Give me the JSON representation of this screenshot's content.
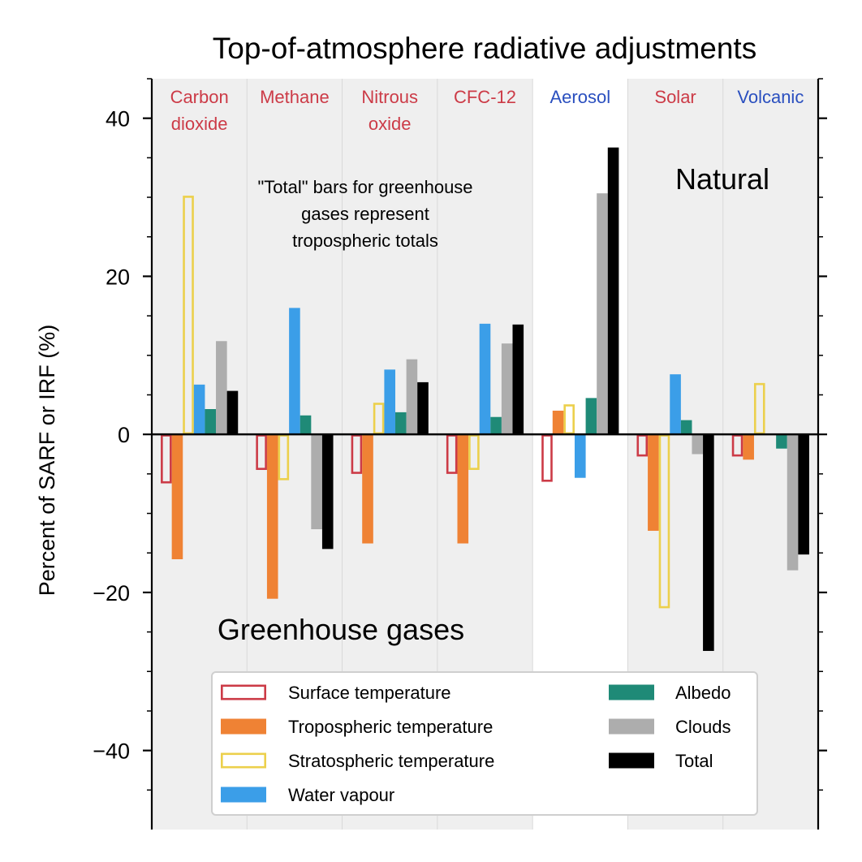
{
  "chart_data": {
    "type": "bar",
    "title": "Top-of-atmosphere radiative adjustments",
    "xlabel": "",
    "ylabel": "Percent of SARF or IRF (%)",
    "ylim": [
      -50,
      45
    ],
    "yticks": [
      -40,
      -20,
      0,
      20,
      40
    ],
    "ytick_labels": [
      "−40",
      "−20",
      "0",
      "20",
      "40"
    ],
    "grid": false,
    "legend_position": "bottom-center",
    "categories": [
      {
        "label": "Carbon dioxide",
        "lines": [
          "Carbon",
          "dioxide"
        ],
        "group": "greenhouse"
      },
      {
        "label": "Methane",
        "lines": [
          "Methane"
        ],
        "group": "greenhouse"
      },
      {
        "label": "Nitrous oxide",
        "lines": [
          "Nitrous",
          "oxide"
        ],
        "group": "greenhouse"
      },
      {
        "label": "CFC-12",
        "lines": [
          "CFC-12"
        ],
        "group": "greenhouse"
      },
      {
        "label": "Aerosol",
        "lines": [
          "Aerosol"
        ],
        "group": "aerosol"
      },
      {
        "label": "Solar",
        "lines": [
          "Solar"
        ],
        "group": "greenhouse"
      },
      {
        "label": "Volcanic",
        "lines": [
          "Volcanic"
        ],
        "group": "aerosol"
      }
    ],
    "series": [
      {
        "name": "Surface temperature",
        "style": "outline",
        "color": "#cc3b47",
        "values": [
          -6.2,
          -4.5,
          -5.0,
          -5.0,
          -6.0,
          -2.8,
          -2.8
        ]
      },
      {
        "name": "Tropospheric temperature",
        "style": "filled",
        "color": "#ef8234",
        "values": [
          -15.8,
          -20.8,
          -13.8,
          -13.8,
          3.0,
          -12.2,
          -3.2
        ]
      },
      {
        "name": "Stratospheric temperature",
        "style": "outline",
        "color": "#ecd04c",
        "values": [
          30.2,
          -5.8,
          4.0,
          -4.5,
          3.8,
          -22.0,
          6.5
        ]
      },
      {
        "name": "Water vapour",
        "style": "filled",
        "color": "#3b9ee8",
        "values": [
          6.3,
          16.0,
          8.2,
          14.0,
          -5.5,
          7.6,
          0.0
        ]
      },
      {
        "name": "Albedo",
        "style": "filled",
        "color": "#1f8a77",
        "values": [
          3.2,
          2.4,
          2.8,
          2.2,
          4.6,
          1.8,
          -1.8
        ]
      },
      {
        "name": "Clouds",
        "style": "filled",
        "color": "#adadad",
        "values": [
          11.8,
          -12.0,
          9.5,
          11.5,
          30.5,
          -2.5,
          -17.2
        ]
      },
      {
        "name": "Total",
        "style": "filled",
        "color": "#000000",
        "values": [
          5.5,
          -14.5,
          6.6,
          13.9,
          36.3,
          -27.4,
          -15.2
        ]
      }
    ],
    "annotations": {
      "total_note": [
        "\"Total\" bars for greenhouse",
        "gases represent",
        "tropospheric totals"
      ],
      "greenhouse_label": "Greenhouse gases",
      "natural_label": "Natural"
    },
    "colors": {
      "greenhouse_label_color": "#cc3b47",
      "aerosol_label_color": "#2a4fbf",
      "shade_background": "#efefef",
      "panel_divider": "#d9d9d9"
    }
  }
}
